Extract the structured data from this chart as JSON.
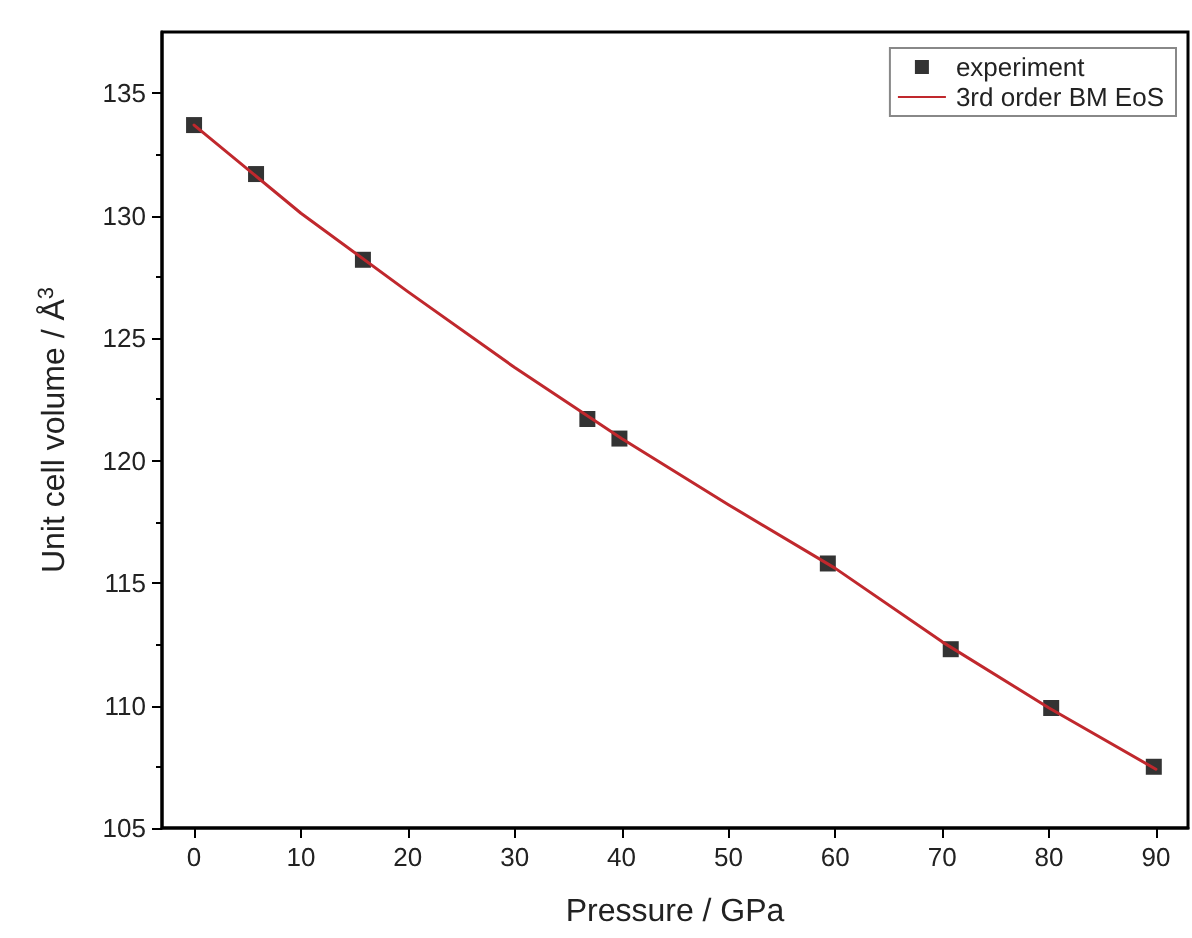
{
  "chart_data": {
    "type": "scatter",
    "xlabel": "Pressure / GPa",
    "ylabel": "Unit cell volume / Å$^{3}$",
    "xlim": [
      -3,
      93
    ],
    "xticks": [
      0,
      10,
      20,
      30,
      40,
      50,
      60,
      70,
      80,
      90
    ],
    "ylim": [
      105,
      137.5
    ],
    "yticks": [
      105,
      110,
      115,
      120,
      125,
      130,
      135
    ],
    "grid": false,
    "legend": "top right",
    "series": [
      {
        "name": "experiment",
        "marker": "square",
        "color": "#000000",
        "x": [
          0,
          5.8,
          15.8,
          36.8,
          39.8,
          59.3,
          70.8,
          80.2,
          89.8
        ],
        "values": [
          133.7,
          131.7,
          128.2,
          121.7,
          120.9,
          115.8,
          112.3,
          109.9,
          107.5
        ]
      },
      {
        "name": "3rd order BM EoS",
        "type": "line",
        "marker": "none",
        "line_style": "solid",
        "color": "#c0282d",
        "x": [
          0,
          10,
          20,
          30,
          40,
          50,
          60,
          70,
          80,
          90
        ],
        "values": [
          133.7,
          130.1,
          126.9,
          123.8,
          120.9,
          118.2,
          115.6,
          112.6,
          109.9,
          107.4
        ]
      }
    ]
  }
}
